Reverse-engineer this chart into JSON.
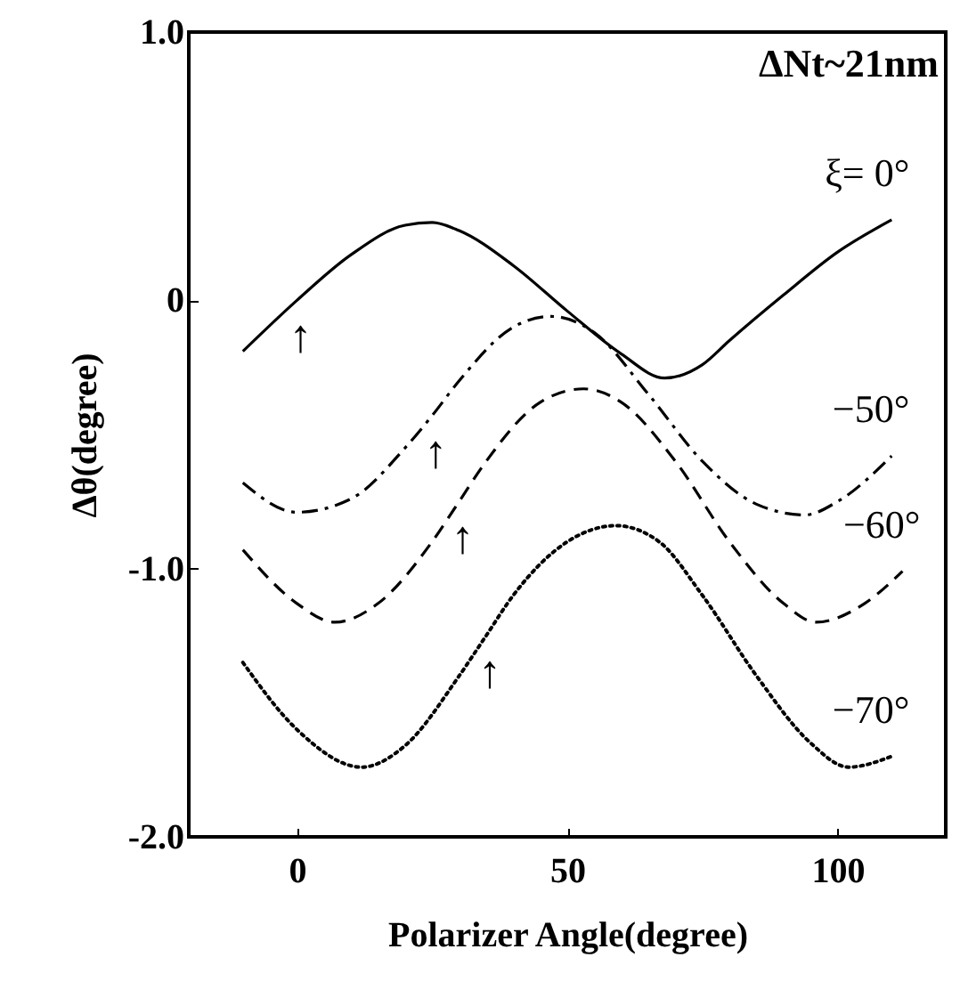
{
  "chart_data": {
    "type": "line",
    "xlabel": "Polarizer Angle(degree)",
    "ylabel": "Δθ(degree)",
    "xlim": [
      -20,
      120
    ],
    "xticks": [
      0,
      50,
      100
    ],
    "ylim": [
      -2,
      1
    ],
    "yticks": [
      {
        "value": 1,
        "label": "1.0"
      },
      0,
      {
        "value": -1,
        "label": "-1.0"
      },
      {
        "value": -2,
        "label": "-2.0"
      }
    ],
    "grid": false,
    "legend": false,
    "marker": "none",
    "series": [
      {
        "name": "ξ= 0°",
        "color": "#000000",
        "line_style": "solid",
        "x": [
          -10,
          0,
          10,
          20,
          25,
          30,
          40,
          50,
          60,
          68,
          75,
          80,
          90,
          100,
          110
        ],
        "values": [
          -0.19,
          0.0,
          0.17,
          0.28,
          0.29,
          0.26,
          0.13,
          -0.04,
          -0.2,
          -0.29,
          -0.24,
          -0.15,
          0.02,
          0.18,
          0.3
        ]
      },
      {
        "name": "−50°",
        "color": "#000000",
        "line_style": "dashdot",
        "x": [
          -10,
          0,
          10,
          20,
          25,
          30,
          40,
          47,
          55,
          65,
          75,
          85,
          94,
          100,
          110
        ],
        "values": [
          -0.68,
          -0.79,
          -0.74,
          -0.55,
          -0.43,
          -0.3,
          -0.1,
          -0.06,
          -0.12,
          -0.35,
          -0.6,
          -0.76,
          -0.8,
          -0.75,
          -0.58
        ]
      },
      {
        "name": "−60°",
        "color": "#000000",
        "line_style": "dashed",
        "x": [
          -10,
          0,
          7,
          15,
          25,
          30,
          35,
          45,
          53,
          60,
          70,
          80,
          90,
          96,
          105,
          112
        ],
        "values": [
          -0.93,
          -1.13,
          -1.2,
          -1.13,
          -0.9,
          -0.75,
          -0.6,
          -0.38,
          -0.33,
          -0.38,
          -0.6,
          -0.9,
          -1.13,
          -1.2,
          -1.13,
          -1.01
        ]
      },
      {
        "name": "−70°",
        "color": "#000000",
        "line_style": "dotted",
        "x": [
          -10,
          0,
          12,
          20,
          30,
          35,
          40,
          50,
          59,
          67,
          75,
          85,
          95,
          102,
          110
        ],
        "values": [
          -1.35,
          -1.6,
          -1.74,
          -1.66,
          -1.4,
          -1.25,
          -1.1,
          -0.9,
          -0.84,
          -0.9,
          -1.1,
          -1.4,
          -1.65,
          -1.74,
          -1.7
        ]
      }
    ],
    "annotations": [
      "ΔNt~21nm",
      {
        "text": "↑",
        "x": 0,
        "y": 0
      },
      {
        "text": "↑",
        "x": 25,
        "y": -0.43
      },
      {
        "text": "↑",
        "x": 30,
        "y": -0.75
      },
      {
        "text": "↑",
        "x": 35,
        "y": -1.25
      }
    ]
  }
}
